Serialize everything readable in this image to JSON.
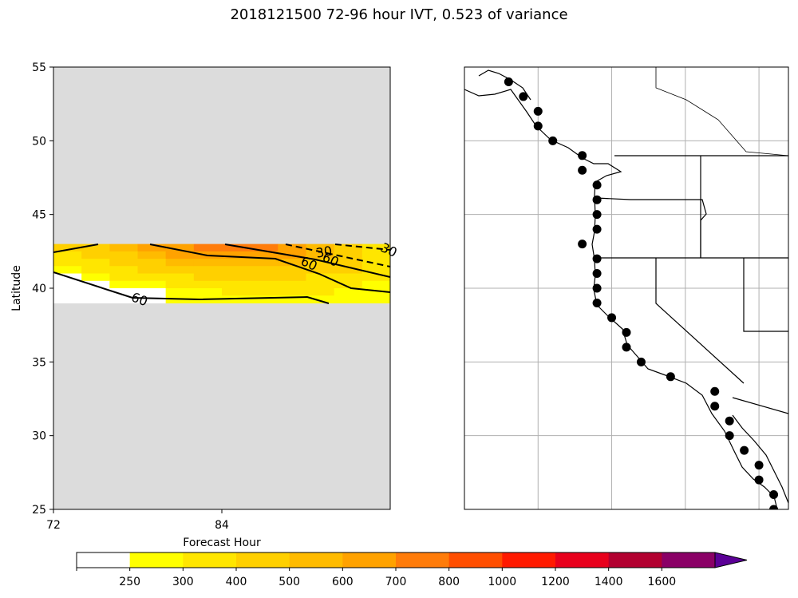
{
  "title": "2018121500 72-96 hour IVT, 0.523 of variance",
  "chart_data": [
    {
      "type": "heatmap",
      "xlabel": "Forecast Hour",
      "ylabel": "Latitude",
      "xlim": [
        72,
        96
      ],
      "ylim": [
        25,
        55
      ],
      "xticks": [
        72,
        84
      ],
      "yticks": [
        25,
        30,
        35,
        40,
        45,
        50,
        55
      ],
      "background_color": "#dcdcdc",
      "data_lat_range": [
        39,
        43
      ],
      "rows_lat": [
        42.8,
        42.3,
        41.8,
        41.3,
        40.8,
        40.3,
        39.8,
        39.3
      ],
      "cols_hour": [
        72,
        74,
        76,
        78,
        80,
        82,
        84,
        86,
        88,
        90,
        92,
        94
      ],
      "ivt_grid": [
        [
          420,
          470,
          540,
          610,
          680,
          730,
          760,
          720,
          650,
          560,
          460,
          370
        ],
        [
          390,
          430,
          490,
          550,
          610,
          650,
          670,
          640,
          600,
          530,
          450,
          360
        ],
        [
          330,
          370,
          420,
          470,
          520,
          560,
          580,
          570,
          540,
          490,
          430,
          360
        ],
        [
          290,
          320,
          360,
          400,
          440,
          470,
          490,
          490,
          470,
          440,
          400,
          350
        ],
        [
          240,
          270,
          310,
          340,
          370,
          400,
          420,
          420,
          410,
          390,
          360,
          320
        ],
        [
          150,
          200,
          250,
          280,
          310,
          330,
          350,
          360,
          350,
          340,
          320,
          290
        ],
        [
          100,
          100,
          180,
          240,
          270,
          290,
          300,
          310,
          300,
          300,
          290,
          280
        ],
        [
          100,
          100,
          100,
          200,
          250,
          260,
          270,
          270,
          270,
          270,
          270,
          260
        ]
      ],
      "contour_labels": [
        "60",
        "60",
        "60",
        "30",
        "30"
      ]
    },
    {
      "type": "map",
      "region": "US West Coast",
      "lon_range": [
        -135,
        -113
      ],
      "lat_range": [
        25,
        55
      ],
      "point_color": "#000000",
      "points": [
        {
          "lat": 54,
          "lon": -132.0
        },
        {
          "lat": 53,
          "lon": -131.0
        },
        {
          "lat": 52,
          "lon": -130.0
        },
        {
          "lat": 51,
          "lon": -130.0
        },
        {
          "lat": 50,
          "lon": -129.0
        },
        {
          "lat": 49,
          "lon": -127.0
        },
        {
          "lat": 48,
          "lon": -127.0
        },
        {
          "lat": 47,
          "lon": -126.0
        },
        {
          "lat": 46,
          "lon": -126.0
        },
        {
          "lat": 45,
          "lon": -126.0
        },
        {
          "lat": 44,
          "lon": -126.0
        },
        {
          "lat": 43,
          "lon": -127.0
        },
        {
          "lat": 42,
          "lon": -126.0
        },
        {
          "lat": 41,
          "lon": -126.0
        },
        {
          "lat": 40,
          "lon": -126.0
        },
        {
          "lat": 39,
          "lon": -126.0
        },
        {
          "lat": 38,
          "lon": -125.0
        },
        {
          "lat": 37,
          "lon": -124.0
        },
        {
          "lat": 36,
          "lon": -124.0
        },
        {
          "lat": 35,
          "lon": -123.0
        },
        {
          "lat": 34,
          "lon": -121.0
        },
        {
          "lat": 33,
          "lon": -118.0
        },
        {
          "lat": 32,
          "lon": -118.0
        },
        {
          "lat": 31,
          "lon": -117.0
        },
        {
          "lat": 30,
          "lon": -117.0
        },
        {
          "lat": 29,
          "lon": -116.0
        },
        {
          "lat": 28,
          "lon": -115.0
        },
        {
          "lat": 27,
          "lon": -115.0
        },
        {
          "lat": 26,
          "lon": -114.0
        },
        {
          "lat": 25,
          "lon": -114.0
        }
      ]
    }
  ],
  "colorbar": {
    "ticks": [
      "250",
      "300",
      "400",
      "500",
      "600",
      "700",
      "800",
      "1000",
      "1200",
      "1400",
      "1600"
    ],
    "colors": [
      "#ffffff",
      "#ffff00",
      "#ffe600",
      "#ffd000",
      "#ffbb00",
      "#ffa200",
      "#ff7c0a",
      "#ff4e00",
      "#ff1a00",
      "#e8001c",
      "#b20030",
      "#8a0066",
      "#65009a"
    ],
    "extend_color": "#5b0096"
  }
}
